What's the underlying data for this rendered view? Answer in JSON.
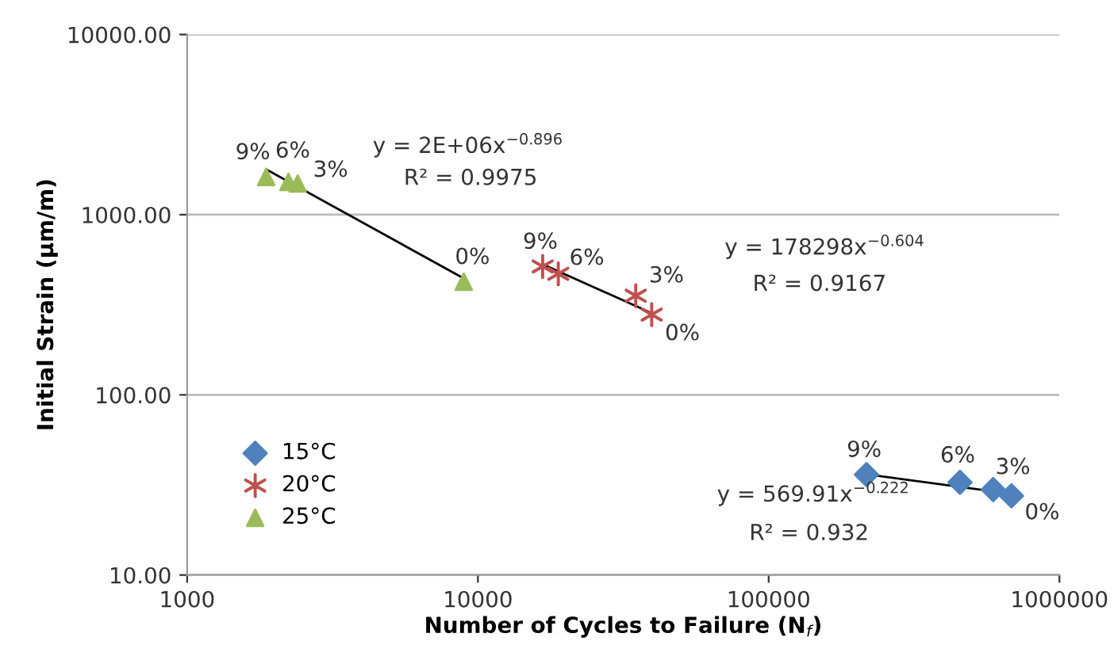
{
  "chart_data": {
    "type": "scatter",
    "xlabel": "Number of Cycles to Failure (N$_{f}$)",
    "ylabel": "Initial Strain (μm/m)",
    "log": "xy",
    "xlim": [
      1000,
      1000000
    ],
    "ylim": [
      10,
      10000
    ],
    "xticks": [
      1000,
      10000,
      100000,
      1000000
    ],
    "yticks": [
      {
        "value": 10,
        "label": "10.00"
      },
      {
        "value": 100,
        "label": "100.00"
      },
      {
        "value": 1000,
        "label": "1000.00"
      },
      {
        "value": 10000,
        "label": "10000.00"
      }
    ],
    "grid": "y",
    "legend": "bottom left",
    "series": [
      {
        "name": "15°C",
        "color": "#4f81bd",
        "marker": "diamond",
        "x": [
          217000,
          455000,
          592000,
          684000
        ],
        "values": [
          36.1,
          32.7,
          29.8,
          27.5
        ]
      },
      {
        "name": "20°C",
        "color": "#c0504d",
        "marker": "cross",
        "x": [
          16700,
          18900,
          34900,
          39600
        ],
        "values": [
          516,
          470,
          355,
          279
        ]
      },
      {
        "name": "25°C",
        "color": "#9bbb59",
        "marker": "triangle",
        "x": [
          1870,
          2230,
          2400,
          8940
        ],
        "values": [
          1620,
          1520,
          1490,
          425
        ]
      },
      {
        "type": "line",
        "color": "#000000",
        "x": [
          217000,
          684000
        ],
        "values": [
          36.2,
          28.2
        ]
      },
      {
        "type": "line",
        "color": "#000000",
        "x": [
          16700,
          39600
        ],
        "values": [
          531,
          284
        ]
      },
      {
        "type": "line",
        "color": "#000000",
        "x": [
          1870,
          8940
        ],
        "values": [
          1785,
          443
        ]
      }
    ],
    "annotations": [
      "y = 2E+06x$^{−0.896}$",
      "R² = 0.9975",
      "y = 178298x$^{−0.604}$",
      "R² = 0.9167",
      "y = 569.91x$^{−0.222}$",
      "R² = 0.932",
      {
        "text": "9%",
        "x": 217000,
        "y": 36.1
      },
      {
        "text": "6%",
        "x": 455000,
        "y": 32.7
      },
      {
        "text": "3%",
        "x": 592000,
        "y": 29.8
      },
      {
        "text": "0%",
        "x": 684000,
        "y": 27.5
      },
      {
        "text": "9%",
        "x": 16700,
        "y": 516
      },
      {
        "text": "6%",
        "x": 18900,
        "y": 470
      },
      {
        "text": "3%",
        "x": 34900,
        "y": 355
      },
      {
        "text": "0%",
        "x": 39600,
        "y": 279
      },
      {
        "text": "9%",
        "x": 1870,
        "y": 1620
      },
      {
        "text": "6%",
        "x": 2230,
        "y": 1520
      },
      {
        "text": "3%",
        "x": 2400,
        "y": 1490
      },
      {
        "text": "0%",
        "x": 8940,
        "y": 425
      }
    ]
  }
}
